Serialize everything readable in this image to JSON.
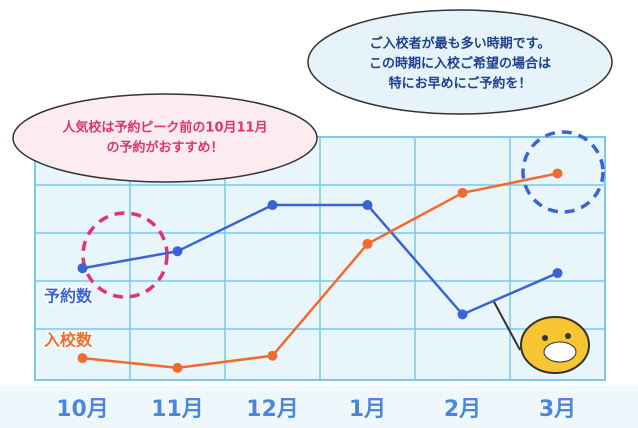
{
  "chart_data": {
    "type": "line",
    "categories": [
      "10月",
      "11月",
      "12月",
      "1月",
      "2月",
      "3月"
    ],
    "series": [
      {
        "name": "予約数",
        "color": "#3b63d6",
        "values": [
          46,
          53,
          72,
          72,
          27,
          44
        ]
      },
      {
        "name": "入校数",
        "color": "#f26a2e",
        "values": [
          9,
          5,
          10,
          56,
          77,
          85
        ]
      }
    ],
    "ylim": [
      0,
      100
    ],
    "annotations": [
      {
        "lines": [
          "人気校は予約ピーク前の10月11月",
          "の予約がおすすめ！"
        ],
        "color": "#e0336f"
      },
      {
        "lines": [
          "ご入校者が最も多い時期です。",
          "この時期に入校ご希望の場合は",
          "特にお早めにご予約を！"
        ],
        "color": "#1d3f8f"
      }
    ]
  }
}
